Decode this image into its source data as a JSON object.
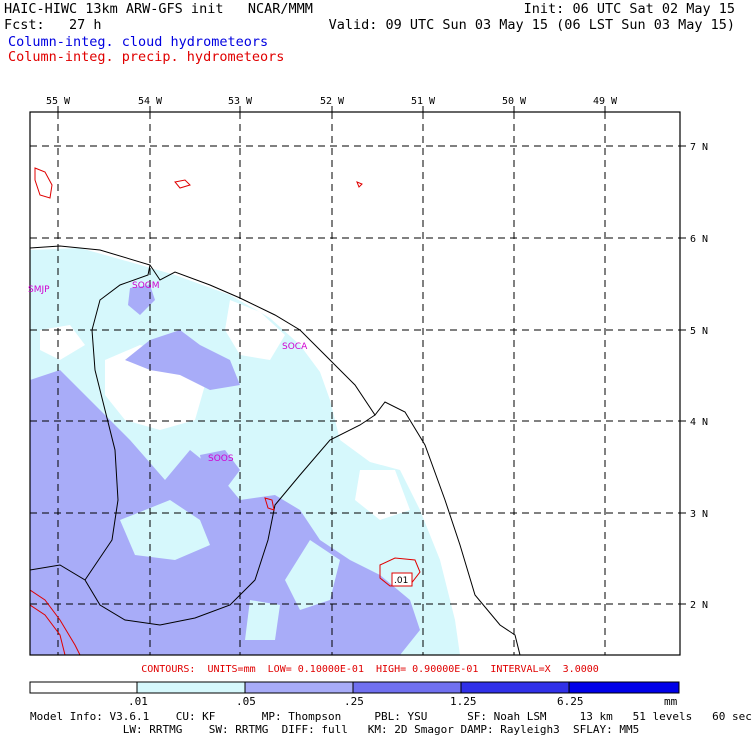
{
  "header": {
    "left_line1": "HAIC-HIWC 13km ARW-GFS init   NCAR/MMM",
    "left_line2": "Fcst:   27 h",
    "right_line1": "Init: 06 UTC Sat 02 May 15",
    "right_line2": "Valid: 09 UTC Sun 03 May 15 (06 LST Sun 03 May 15)",
    "field1": "Column-integ. cloud hydrometeors",
    "field2": "Column-integ. precip. hydrometeors"
  },
  "map": {
    "lon_labels": [
      "55 W",
      "54 W",
      "53 W",
      "52 W",
      "51 W",
      "50 W",
      "49 W"
    ],
    "lat_labels": [
      "7 N",
      "6 N",
      "5 N",
      "4 N",
      "3 N",
      "2 N"
    ],
    "stations": [
      "SMJP",
      "SOGM",
      "SOCA",
      "SOOS"
    ],
    "contour_label": ".01",
    "colors": {
      "water": "#ffffff",
      "land_line": "#000000",
      "grid": "#000000",
      "cloud_light": "#d6f8fc",
      "cloud_mid": "#a8acf8",
      "precip_contour": "#e00000",
      "station": "#d000d0"
    }
  },
  "contours_line": "CONTOURS:  UNITS=mm  LOW= 0.10000E-01  HIGH= 0.90000E-01  INTERVAL=X  3.0000",
  "legend": {
    "thresholds": [
      ".01",
      ".05",
      ".25",
      "1.25",
      "6.25"
    ],
    "units": "mm",
    "colors": [
      "#ffffff",
      "#d6f8fc",
      "#a8acf8",
      "#7070f0",
      "#3030e8",
      "#0000e8"
    ]
  },
  "model_info": {
    "line1": "Model Info: V3.6.1    CU: KF       MP: Thompson     PBL: YSU      SF: Noah LSM     13 km   51 levels   60 sec",
    "line2": "              LW: RRTMG    SW: RRTMG  DIFF: full   KM: 2D Smagor DAMP: Rayleigh3  SFLAY: MM5"
  }
}
